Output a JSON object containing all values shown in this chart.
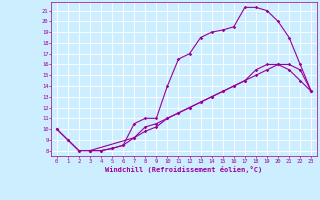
{
  "xlabel": "Windchill (Refroidissement éolien,°C)",
  "bg_color": "#cceeff",
  "line_color": "#990099",
  "grid_color": "#ffffff",
  "xlim": [
    -0.5,
    23.5
  ],
  "ylim": [
    7.5,
    21.8
  ],
  "xticks": [
    0,
    1,
    2,
    3,
    4,
    5,
    6,
    7,
    8,
    9,
    10,
    11,
    12,
    13,
    14,
    15,
    16,
    17,
    18,
    19,
    20,
    21,
    22,
    23
  ],
  "yticks": [
    8,
    9,
    10,
    11,
    12,
    13,
    14,
    15,
    16,
    17,
    18,
    19,
    20,
    21
  ],
  "curve1_x": [
    0,
    1,
    2,
    3,
    4,
    5,
    6,
    7,
    8,
    9,
    10,
    11,
    12,
    13,
    14,
    15,
    16,
    17,
    18,
    19,
    20,
    21,
    22,
    23
  ],
  "curve1_y": [
    10,
    9,
    8,
    8,
    8,
    8.2,
    8.5,
    10.5,
    11,
    11,
    14,
    16.5,
    17,
    18.5,
    19,
    19.2,
    19.5,
    21.3,
    21.3,
    21,
    20,
    18.5,
    16,
    13.5
  ],
  "curve2_x": [
    0,
    1,
    2,
    3,
    4,
    5,
    6,
    7,
    8,
    9,
    10,
    11,
    12,
    13,
    14,
    15,
    16,
    17,
    18,
    19,
    20,
    21,
    22,
    23
  ],
  "curve2_y": [
    10,
    9,
    8,
    8,
    8,
    8.2,
    8.5,
    9.2,
    10.2,
    10.5,
    11,
    11.5,
    12,
    12.5,
    13,
    13.5,
    14,
    14.5,
    15,
    15.5,
    16,
    16,
    15.5,
    13.5
  ],
  "curve3_x": [
    3,
    7,
    8,
    9,
    10,
    11,
    12,
    13,
    14,
    15,
    16,
    17,
    18,
    19,
    20,
    21,
    22,
    23
  ],
  "curve3_y": [
    8,
    9.2,
    9.8,
    10.2,
    11,
    11.5,
    12,
    12.5,
    13,
    13.5,
    14,
    14.5,
    15.5,
    16,
    16,
    15.5,
    14.5,
    13.5
  ]
}
